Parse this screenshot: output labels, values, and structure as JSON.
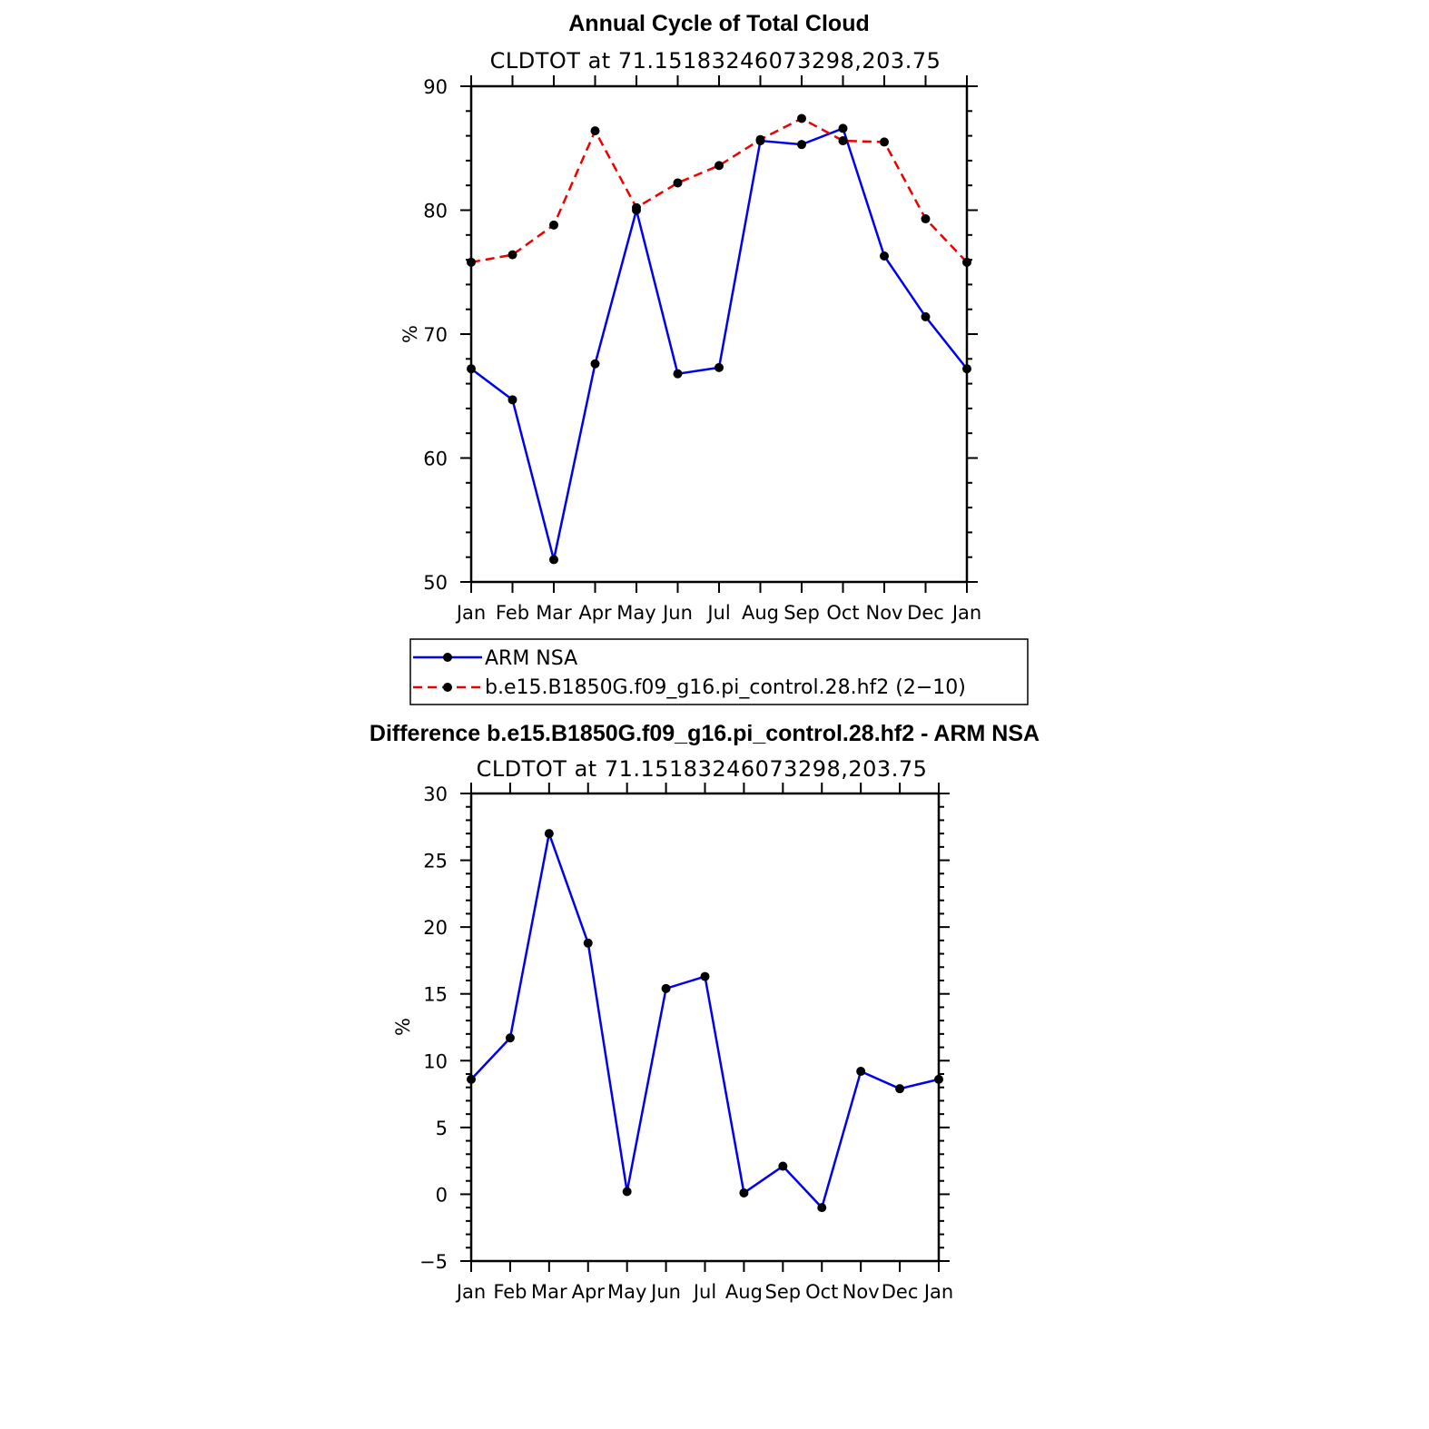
{
  "chart_data": [
    {
      "type": "line",
      "title": "Annual Cycle of Total Cloud",
      "subtitle": "CLDTOT at 71.15183246073298,203.75",
      "ylabel": "%",
      "xlabel": "",
      "ylim": [
        50,
        90
      ],
      "yticks": [
        50,
        60,
        70,
        80,
        90
      ],
      "categories": [
        "Jan",
        "Feb",
        "Mar",
        "Apr",
        "May",
        "Jun",
        "Jul",
        "Aug",
        "Sep",
        "Oct",
        "Nov",
        "Dec",
        "Jan"
      ],
      "series": [
        {
          "name": "ARM NSA",
          "color": "#0000ee",
          "dash": "solid",
          "values": [
            67.2,
            64.7,
            51.8,
            67.6,
            80.0,
            66.8,
            67.3,
            85.6,
            85.3,
            86.6,
            76.3,
            71.4,
            67.2
          ]
        },
        {
          "name": "b.e15.B1850G.f09_g16.pi_control.28.hf2 (2−10)",
          "color": "#ee0000",
          "dash": "dashed",
          "values": [
            75.8,
            76.4,
            78.8,
            86.4,
            80.2,
            82.2,
            83.6,
            85.7,
            87.4,
            85.6,
            85.5,
            79.3,
            75.8
          ]
        }
      ],
      "legend": [
        "ARM NSA",
        "b.e15.B1850G.f09_g16.pi_control.28.hf2 (2−10)"
      ]
    },
    {
      "type": "line",
      "title": "Difference b.e15.B1850G.f09_g16.pi_control.28.hf2 - ARM NSA",
      "subtitle": "CLDTOT at 71.15183246073298,203.75",
      "ylabel": "%",
      "xlabel": "",
      "ylim": [
        -5,
        30
      ],
      "yticks": [
        -5,
        0,
        5,
        10,
        15,
        20,
        25,
        30
      ],
      "ytick_labels": [
        "−5",
        "0",
        "5",
        "10",
        "15",
        "20",
        "25",
        "30"
      ],
      "categories": [
        "Jan",
        "Feb",
        "Mar",
        "Apr",
        "May",
        "Jun",
        "Jul",
        "Aug",
        "Sep",
        "Oct",
        "Nov",
        "Dec",
        "Jan"
      ],
      "series": [
        {
          "name": "Difference",
          "color": "#0000ee",
          "dash": "solid",
          "values": [
            8.6,
            11.7,
            27.0,
            18.8,
            0.2,
            15.4,
            16.3,
            0.1,
            2.1,
            -1.0,
            9.2,
            7.9,
            8.6
          ]
        }
      ]
    }
  ]
}
